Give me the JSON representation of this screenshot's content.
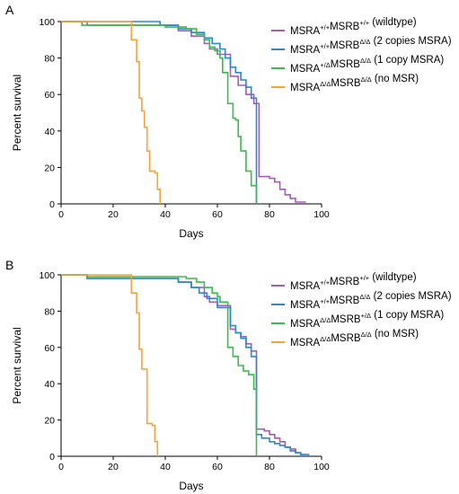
{
  "chart_data": [
    {
      "type": "line",
      "panel_label": "A",
      "xlabel": "Days",
      "ylabel": "Percent survival",
      "xlim": [
        0,
        100
      ],
      "ylim": [
        0,
        100
      ],
      "x_ticks": [
        "0",
        "20",
        "40",
        "60",
        "80",
        "100"
      ],
      "y_ticks": [
        "0",
        "20",
        "40",
        "60",
        "80",
        "100"
      ],
      "grid": false,
      "legend_position": "top-right",
      "series": [
        {
          "name": "MSRA+/+MSRB+/+ (wildtype)",
          "legend": [
            {
              "t": "MSRA"
            },
            {
              "t": "+/+",
              "sup": true
            },
            {
              "t": "MSRB"
            },
            {
              "t": "+/+",
              "sup": true
            },
            {
              "t": " (wildtype)"
            }
          ],
          "color": "#a85bb5",
          "points": [
            [
              0,
              100
            ],
            [
              10,
              98
            ],
            [
              45,
              95
            ],
            [
              50,
              92
            ],
            [
              55,
              88
            ],
            [
              57,
              85
            ],
            [
              60,
              82
            ],
            [
              65,
              70
            ],
            [
              68,
              65
            ],
            [
              71,
              60
            ],
            [
              74,
              55
            ],
            [
              76,
              15
            ],
            [
              80,
              14
            ],
            [
              82,
              12
            ],
            [
              84,
              8
            ],
            [
              86,
              5
            ],
            [
              88,
              3
            ],
            [
              90,
              1
            ],
            [
              94,
              1
            ]
          ]
        },
        {
          "name": "MSRA+/+MSRBΔ/Δ (2 copies MSRA)",
          "legend": [
            {
              "t": "MSRA"
            },
            {
              "t": "+/+",
              "sup": true
            },
            {
              "t": "MSRB"
            },
            {
              "t": "Δ/Δ",
              "sup": true
            },
            {
              "t": " (2 copies MSRA)"
            }
          ],
          "color": "#2a87d0",
          "points": [
            [
              0,
              100
            ],
            [
              28,
              100
            ],
            [
              38,
              98
            ],
            [
              45,
              96
            ],
            [
              50,
              94
            ],
            [
              55,
              91
            ],
            [
              58,
              88
            ],
            [
              61,
              85
            ],
            [
              63,
              80
            ],
            [
              65,
              75
            ],
            [
              67,
              72
            ],
            [
              69,
              68
            ],
            [
              71,
              64
            ],
            [
              73,
              58
            ],
            [
              75,
              53
            ],
            [
              75,
              0
            ]
          ]
        },
        {
          "name": "MSRA+/ΔMSRBΔ/Δ (1 copy MSRA)",
          "legend": [
            {
              "t": "MSRA"
            },
            {
              "t": "+/Δ",
              "sup": true
            },
            {
              "t": "MSRB"
            },
            {
              "t": "Δ/Δ",
              "sup": true
            },
            {
              "t": " (1 copy MSRA)"
            }
          ],
          "color": "#3cba4c",
          "points": [
            [
              0,
              100
            ],
            [
              8,
              98
            ],
            [
              40,
              97
            ],
            [
              48,
              96
            ],
            [
              52,
              93
            ],
            [
              55,
              90
            ],
            [
              57,
              86
            ],
            [
              59,
              84
            ],
            [
              61,
              80
            ],
            [
              62,
              72
            ],
            [
              64,
              70
            ],
            [
              64,
              55
            ],
            [
              66,
              47
            ],
            [
              67,
              46
            ],
            [
              68,
              37
            ],
            [
              69,
              29
            ],
            [
              71,
              18
            ],
            [
              73,
              10
            ],
            [
              75,
              10
            ],
            [
              75,
              0
            ]
          ]
        },
        {
          "name": "MSRAΔ/ΔMSRBΔ/Δ (no MSR)",
          "legend": [
            {
              "t": "MSRA"
            },
            {
              "t": "Δ/Δ",
              "sup": true
            },
            {
              "t": "MSRB"
            },
            {
              "t": "Δ/Δ",
              "sup": true
            },
            {
              "t": " (no MSR)"
            }
          ],
          "color": "#f5a33a",
          "points": [
            [
              0,
              100
            ],
            [
              26,
              100
            ],
            [
              27,
              90
            ],
            [
              29,
              78
            ],
            [
              30,
              58
            ],
            [
              31,
              51
            ],
            [
              32,
              42
            ],
            [
              33,
              29
            ],
            [
              34,
              18
            ],
            [
              36,
              17
            ],
            [
              37,
              8
            ],
            [
              38,
              1
            ],
            [
              38,
              0
            ]
          ]
        }
      ]
    },
    {
      "type": "line",
      "panel_label": "B",
      "xlabel": "Days",
      "ylabel": "Percent survival",
      "xlim": [
        0,
        100
      ],
      "ylim": [
        0,
        100
      ],
      "x_ticks": [
        "0",
        "20",
        "40",
        "60",
        "80",
        "100"
      ],
      "y_ticks": [
        "0",
        "20",
        "40",
        "60",
        "80",
        "100"
      ],
      "grid": false,
      "legend_position": "top-right",
      "series": [
        {
          "name": "MSRA+/+MSRB+/+ (wildtype)",
          "legend": [
            {
              "t": "MSRA"
            },
            {
              "t": "+/+",
              "sup": true
            },
            {
              "t": "MSRB"
            },
            {
              "t": "+/+",
              "sup": true
            },
            {
              "t": " (wildtype)"
            }
          ],
          "color": "#a85bb5",
          "points": [
            [
              0,
              100
            ],
            [
              10,
              98
            ],
            [
              45,
              96
            ],
            [
              50,
              93
            ],
            [
              55,
              88
            ],
            [
              57,
              85
            ],
            [
              60,
              83
            ],
            [
              65,
              70
            ],
            [
              67,
              68
            ],
            [
              69,
              66
            ],
            [
              71,
              62
            ],
            [
              73,
              58
            ],
            [
              75,
              55
            ],
            [
              75,
              15
            ],
            [
              78,
              14
            ],
            [
              80,
              12
            ],
            [
              82,
              10
            ],
            [
              84,
              8
            ],
            [
              86,
              5
            ],
            [
              88,
              4
            ],
            [
              90,
              2
            ],
            [
              92,
              1
            ],
            [
              94,
              1
            ]
          ]
        },
        {
          "name": "MSRA+/+MSRBΔ/Δ (2 copies MSRA)",
          "legend": [
            {
              "t": "MSRA"
            },
            {
              "t": "+/+",
              "sup": true
            },
            {
              "t": "MSRB"
            },
            {
              "t": "Δ/Δ",
              "sup": true
            },
            {
              "t": " (2 copies MSRA)"
            }
          ],
          "color": "#2a87d0",
          "points": [
            [
              0,
              100
            ],
            [
              10,
              98
            ],
            [
              45,
              96
            ],
            [
              50,
              93
            ],
            [
              53,
              90
            ],
            [
              56,
              87
            ],
            [
              60,
              82
            ],
            [
              65,
              72
            ],
            [
              67,
              68
            ],
            [
              69,
              65
            ],
            [
              71,
              60
            ],
            [
              73,
              55
            ],
            [
              75,
              50
            ],
            [
              75,
              12
            ],
            [
              77,
              10
            ],
            [
              80,
              8
            ],
            [
              82,
              7
            ],
            [
              84,
              6
            ],
            [
              86,
              5
            ],
            [
              88,
              3
            ],
            [
              90,
              2
            ],
            [
              92,
              1
            ],
            [
              95,
              0
            ]
          ]
        },
        {
          "name": "MSRAΔ/ΔMSRB+/Δ (1 copy MSRA)",
          "legend": [
            {
              "t": "MSRA"
            },
            {
              "t": "Δ/Δ",
              "sup": true
            },
            {
              "t": "MSRB"
            },
            {
              "t": "+/Δ",
              "sup": true
            },
            {
              "t": " (1 copy MSRA)"
            }
          ],
          "color": "#3cba4c",
          "points": [
            [
              0,
              100
            ],
            [
              10,
              99
            ],
            [
              30,
              99
            ],
            [
              48,
              98
            ],
            [
              52,
              96
            ],
            [
              55,
              93
            ],
            [
              58,
              90
            ],
            [
              60,
              88
            ],
            [
              61,
              85
            ],
            [
              64,
              85
            ],
            [
              64,
              60
            ],
            [
              66,
              55
            ],
            [
              68,
              50
            ],
            [
              70,
              47
            ],
            [
              72,
              45
            ],
            [
              74,
              37
            ],
            [
              75,
              37
            ],
            [
              75,
              0
            ]
          ]
        },
        {
          "name": "MSRAΔ/ΔMSRBΔ/Δ (no MSR)",
          "legend": [
            {
              "t": "MSRA"
            },
            {
              "t": "Δ/Δ",
              "sup": true
            },
            {
              "t": "MSRB"
            },
            {
              "t": "Δ/Δ",
              "sup": true
            },
            {
              "t": " (no MSR)"
            }
          ],
          "color": "#f5a33a",
          "points": [
            [
              0,
              100
            ],
            [
              26,
              100
            ],
            [
              27,
              90
            ],
            [
              29,
              79
            ],
            [
              30,
              59
            ],
            [
              31,
              48
            ],
            [
              33,
              18
            ],
            [
              35,
              17
            ],
            [
              36,
              8
            ],
            [
              37,
              0
            ]
          ]
        }
      ]
    }
  ]
}
